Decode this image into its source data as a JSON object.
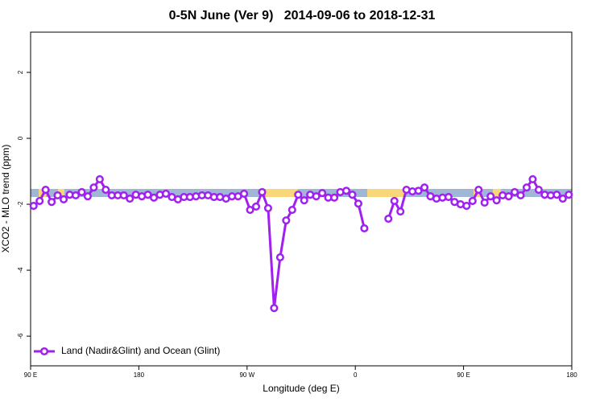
{
  "chart_data": {
    "type": "line",
    "title": "0-5N June (Ver 9)   2014-09-06 to 2018-12-31",
    "xlabel": "Longitude (deg E)",
    "ylabel": "XCO2 - MLO trend (ppm)",
    "x": [
      92.5,
      97.5,
      102.5,
      107.5,
      112.5,
      117.5,
      122.5,
      127.5,
      132.5,
      137.5,
      142.5,
      147.5,
      152.5,
      157.5,
      162.5,
      167.5,
      172.5,
      177.5,
      182.5,
      187.5,
      192.5,
      197.5,
      202.5,
      207.5,
      212.5,
      217.5,
      222.5,
      227.5,
      232.5,
      237.5,
      242.5,
      247.5,
      252.5,
      257.5,
      262.5,
      267.5,
      272.5,
      277.5,
      282.5,
      287.5,
      292.5,
      297.5,
      302.5,
      307.5,
      312.5,
      317.5,
      322.5,
      327.5,
      332.5,
      337.5,
      342.5,
      347.5,
      352.5,
      357.5,
      362.5,
      367.5,
      372.5,
      377.5,
      382.5,
      387.5,
      392.5,
      397.5,
      402.5,
      407.5,
      412.5,
      417.5,
      422.5,
      427.5,
      432.5,
      437.5,
      442.5,
      447.5,
      452.5,
      457.5,
      462.5,
      467.5,
      472.5,
      477.5,
      482.5,
      487.5,
      492.5,
      497.5,
      502.5,
      507.5,
      512.5,
      517.5,
      522.5,
      527.5,
      532.5,
      537.5
    ],
    "series": [
      {
        "name": "Land (Nadir&Glint) and Ocean (Glint)",
        "color": "#a020f0",
        "values": [
          -2.05,
          -1.9,
          -1.56,
          -1.93,
          -1.73,
          -1.85,
          -1.71,
          -1.73,
          -1.63,
          -1.76,
          -1.49,
          -1.24,
          -1.56,
          -1.73,
          -1.73,
          -1.73,
          -1.83,
          -1.71,
          -1.76,
          -1.71,
          -1.8,
          -1.71,
          -1.68,
          -1.78,
          -1.85,
          -1.78,
          -1.78,
          -1.76,
          -1.73,
          -1.73,
          -1.78,
          -1.78,
          -1.83,
          -1.76,
          -1.76,
          -1.68,
          -2.17,
          -2.07,
          -1.63,
          -2.12,
          -5.15,
          -3.61,
          -2.49,
          -2.17,
          -1.71,
          -1.88,
          -1.71,
          -1.76,
          -1.66,
          -1.8,
          -1.8,
          -1.63,
          -1.59,
          -1.71,
          -1.98,
          -2.73,
          null,
          null,
          null,
          -2.44,
          -1.9,
          -2.22,
          -1.56,
          -1.61,
          -1.59,
          -1.49,
          -1.76,
          -1.83,
          -1.8,
          -1.78,
          -1.93,
          -2.0,
          -2.05,
          -1.9,
          -1.56,
          -1.95,
          -1.76,
          -1.88,
          -1.73,
          -1.76,
          -1.63,
          -1.73,
          -1.49,
          -1.24,
          -1.56,
          -1.71,
          -1.73,
          -1.71,
          -1.83,
          -1.71
        ]
      }
    ],
    "xlim": [
      90,
      540
    ],
    "xticks": [
      {
        "value": 90,
        "label": "90 E"
      },
      180,
      {
        "value": 270,
        "label": "90 W"
      },
      {
        "value": 360,
        "label": "0"
      },
      {
        "value": 450,
        "label": "90 E"
      },
      {
        "value": 540,
        "label": "180"
      }
    ],
    "ylim": [
      -6.9,
      3.22
    ],
    "yticks": [
      -6,
      -4,
      -2,
      0,
      2
    ],
    "legend": "bottom-left"
  }
}
